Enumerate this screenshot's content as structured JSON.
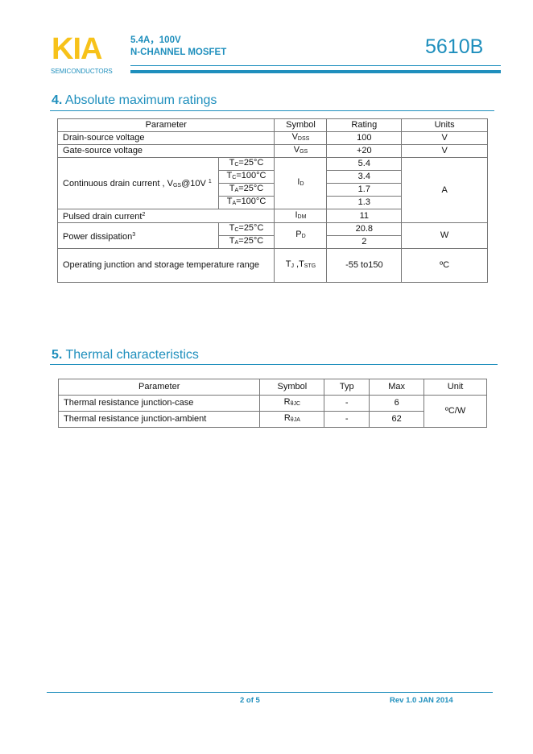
{
  "header": {
    "logo": "KIA",
    "logo_sub": "SEMICONDUCTORS",
    "line1": "5.4A，100V",
    "line2": "N-CHANNEL MOSFET",
    "part": "5610B",
    "accent": "#1f8fbd",
    "logo_color": "#f7c21a"
  },
  "s4": {
    "num": "4.",
    "title": "Absolute maximum ratings",
    "head": [
      "Parameter",
      "Symbol",
      "Rating",
      "Units"
    ],
    "r1": {
      "p": "Drain-source voltage",
      "s": "V",
      "ss": "DSS",
      "v": "100",
      "u": "V"
    },
    "r2": {
      "p": "Gate-source voltage",
      "s": "V",
      "ss": "GS",
      "v": "+20",
      "u": "V"
    },
    "r3": {
      "p1": "Continuous drain current , V",
      "ps": "GS",
      "p2": "@10V",
      "fn": "1",
      "s": "I",
      "ss": "D",
      "u": "A",
      "c": [
        {
          "t": "T",
          "ts": "C",
          "tc": "=25°C",
          "v": "5.4"
        },
        {
          "t": "T",
          "ts": "C",
          "tc": "=100°C",
          "v": "3.4"
        },
        {
          "t": "T",
          "ts": "A",
          "tc": "=25°C",
          "v": "1.7"
        },
        {
          "t": "T",
          "ts": "A",
          "tc": "=100°C",
          "v": "1.3"
        }
      ]
    },
    "r4": {
      "p": "Pulsed drain current",
      "fn": "2",
      "s": "I",
      "ss": "DM",
      "v": "11"
    },
    "r5": {
      "p": "Power dissipation",
      "fn": "3",
      "s": "P",
      "ss": "D",
      "u": "W",
      "c": [
        {
          "t": "T",
          "ts": "C",
          "tc": "=25°C",
          "v": "20.8"
        },
        {
          "t": "T",
          "ts": "A",
          "tc": "=25°C",
          "v": "2"
        }
      ]
    },
    "r6": {
      "p": "Operating junction and storage temperature range",
      "s1": "T",
      "s1s": "J",
      "s2": " ,T",
      "s2s": "STG",
      "v": "-55 to150",
      "u": "ºC"
    }
  },
  "s5": {
    "num": "5.",
    "title": "Thermal characteristics",
    "head": [
      "Parameter",
      "Symbol",
      "Typ",
      "Max",
      "Unit"
    ],
    "rows": [
      {
        "p": "Thermal resistance junction-case",
        "s": "R",
        "ss": "θJC",
        "typ": "-",
        "max": "6"
      },
      {
        "p": "Thermal resistance junction-ambient",
        "s": "R",
        "ss": "θJA",
        "typ": "-",
        "max": "62"
      }
    ],
    "unit": "ºC/W"
  },
  "footer": {
    "page": "2 of 5",
    "rev": "Rev 1.0 JAN 2014"
  }
}
